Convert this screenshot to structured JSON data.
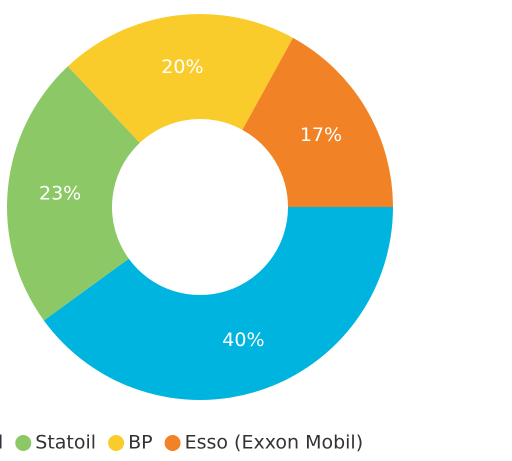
{
  "chart_data": {
    "type": "donut",
    "categories": [
      "l",
      "Statoil",
      "BP",
      "Esso (Exxon Mobil)"
    ],
    "values": [
      40,
      23,
      20,
      17
    ],
    "value_labels": [
      "40%",
      "23%",
      "20%",
      "17%"
    ],
    "colors": [
      "#00b4e0",
      "#8cc865",
      "#f9cc2b",
      "#f28226"
    ],
    "legend": "bottom"
  }
}
